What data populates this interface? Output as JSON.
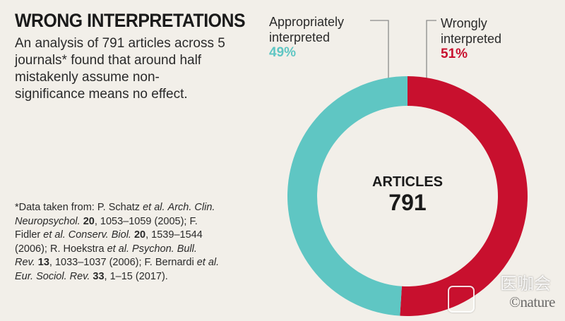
{
  "title": "WRONG INTERPRETATIONS",
  "subtitle": "An analysis of 791 articles across 5 journals* found that around half mistakenly assume non-significance means no effect.",
  "footnote_parts": [
    {
      "t": "*Data taken from: P. Schatz "
    },
    {
      "t": "et al.",
      "s": "i"
    },
    {
      "t": " "
    },
    {
      "t": "Arch. Clin. Neuropsychol.",
      "s": "i"
    },
    {
      "t": " "
    },
    {
      "t": "20",
      "s": "b"
    },
    {
      "t": ", 1053–1059 (2005); F. Fidler "
    },
    {
      "t": "et al.",
      "s": "i"
    },
    {
      "t": " "
    },
    {
      "t": "Conserv. Biol.",
      "s": "i"
    },
    {
      "t": " "
    },
    {
      "t": "20",
      "s": "b"
    },
    {
      "t": ", 1539–1544 (2006); R. Hoekstra "
    },
    {
      "t": "et al. Psychon. Bull. Rev.",
      "s": "i"
    },
    {
      "t": " "
    },
    {
      "t": "13",
      "s": "b"
    },
    {
      "t": ", 1033–1037 (2006); F. Bernardi "
    },
    {
      "t": "et al. Eur. Sociol. Rev.",
      "s": "i"
    },
    {
      "t": " "
    },
    {
      "t": "33",
      "s": "b"
    },
    {
      "t": ", 1–15 (2017)."
    }
  ],
  "watermark": {
    "cn_text": "医咖会",
    "brand": "©nature"
  },
  "chart_data": {
    "type": "pie",
    "center_label": "ARTICLES",
    "center_value": "791",
    "slices": [
      {
        "label_line1": "Wrongly",
        "label_line2": "interpreted",
        "value": 51,
        "pct": "51%",
        "color": "#c8102e"
      },
      {
        "label_line1": "Appropriately",
        "label_line2": "interpreted",
        "value": 49,
        "pct": "49%",
        "color": "#5fc6c3"
      }
    ]
  }
}
